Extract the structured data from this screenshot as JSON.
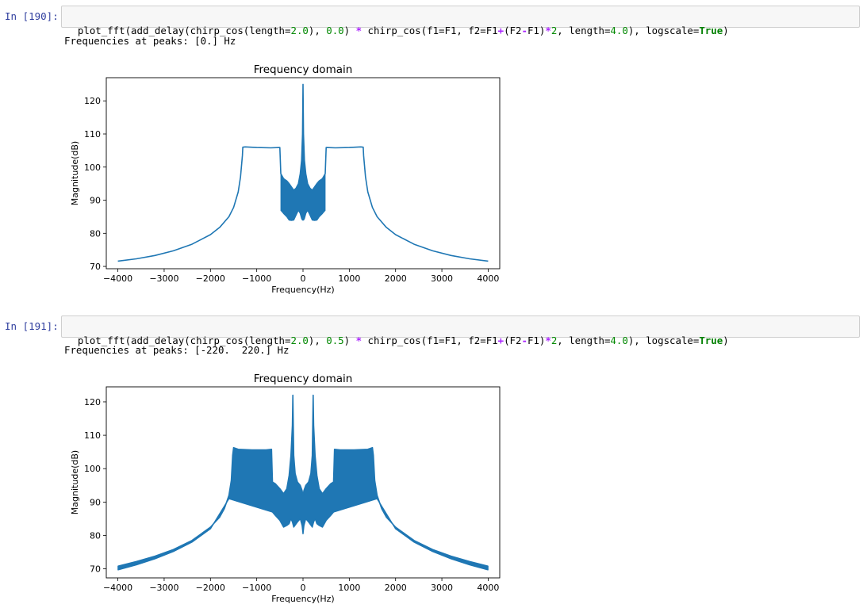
{
  "cells": [
    {
      "prompt": "In [190]:",
      "code_tokens": [
        {
          "t": "plot_fft(add_delay(chirp_cos(length=",
          "c": "p"
        },
        {
          "t": "2.0",
          "c": "num"
        },
        {
          "t": "), ",
          "c": "p"
        },
        {
          "t": "0.0",
          "c": "num"
        },
        {
          "t": ") ",
          "c": "p"
        },
        {
          "t": "*",
          "c": "op"
        },
        {
          "t": " chirp_cos(f1=F1, f2=F1",
          "c": "p"
        },
        {
          "t": "+",
          "c": "op"
        },
        {
          "t": "(F2",
          "c": "p"
        },
        {
          "t": "-",
          "c": "op"
        },
        {
          "t": "F1)",
          "c": "p"
        },
        {
          "t": "*",
          "c": "op"
        },
        {
          "t": "2",
          "c": "num"
        },
        {
          "t": ", length=",
          "c": "p"
        },
        {
          "t": "4.0",
          "c": "num"
        },
        {
          "t": "), logscale=",
          "c": "p"
        },
        {
          "t": "True",
          "c": "kw"
        },
        {
          "t": ")",
          "c": "p"
        }
      ],
      "output_text": "Frequencies at peaks: [0.] Hz"
    },
    {
      "prompt": "In [191]:",
      "code_tokens": [
        {
          "t": "plot_fft(add_delay(chirp_cos(length=",
          "c": "p"
        },
        {
          "t": "2.0",
          "c": "num"
        },
        {
          "t": "), ",
          "c": "p"
        },
        {
          "t": "0.5",
          "c": "num"
        },
        {
          "t": ") ",
          "c": "p"
        },
        {
          "t": "*",
          "c": "op"
        },
        {
          "t": " chirp_cos(f1=F1, f2=F1",
          "c": "p"
        },
        {
          "t": "+",
          "c": "op"
        },
        {
          "t": "(F2",
          "c": "p"
        },
        {
          "t": "-",
          "c": "op"
        },
        {
          "t": "F1)",
          "c": "p"
        },
        {
          "t": "*",
          "c": "op"
        },
        {
          "t": "2",
          "c": "num"
        },
        {
          "t": ", length=",
          "c": "p"
        },
        {
          "t": "4.0",
          "c": "num"
        },
        {
          "t": "), logscale=",
          "c": "p"
        },
        {
          "t": "True",
          "c": "kw"
        },
        {
          "t": ")",
          "c": "p"
        }
      ],
      "output_text": "Frequencies at peaks: [-220.  220.] Hz"
    }
  ],
  "chart_data": [
    {
      "type": "line",
      "title": "Frequency domain",
      "xlabel": "Frequency(Hz)",
      "ylabel": "Magnitude(dB)",
      "xlim": [
        -4250,
        4250
      ],
      "ylim": [
        69.3,
        127
      ],
      "xticks": [
        -4000,
        -3000,
        -2000,
        -1000,
        0,
        1000,
        2000,
        3000,
        4000
      ],
      "xtick_labels": [
        "−4000",
        "−3000",
        "−2000",
        "−1000",
        "0",
        "1000",
        "2000",
        "3000",
        "4000"
      ],
      "yticks": [
        70,
        80,
        90,
        100,
        110,
        120
      ],
      "ytick_labels": [
        "70",
        "80",
        "90",
        "100",
        "110",
        "120"
      ],
      "line_color": "#1f77b4",
      "series": [
        {
          "outline": [
            [
              -4000,
              71.6
            ],
            [
              -3600,
              72.3
            ],
            [
              -3200,
              73.3
            ],
            [
              -2800,
              74.7
            ],
            [
              -2400,
              76.7
            ],
            [
              -2000,
              79.6
            ],
            [
              -1800,
              81.8
            ],
            [
              -1600,
              85.0
            ],
            [
              -1500,
              87.8
            ],
            [
              -1400,
              92.5
            ],
            [
              -1350,
              97.0
            ],
            [
              -1310,
              103.5
            ],
            [
              -1300,
              106.0
            ],
            [
              -1250,
              106.1
            ],
            [
              -1000,
              105.9
            ],
            [
              -700,
              105.8
            ],
            [
              -500,
              105.9
            ],
            [
              -480,
              98.0
            ],
            [
              -420,
              96.5
            ],
            [
              -350,
              95.8
            ],
            [
              -300,
              95.0
            ],
            [
              -250,
              94.0
            ],
            [
              -200,
              93.0
            ],
            [
              -150,
              93.6
            ],
            [
              -100,
              95.0
            ],
            [
              -60,
              98.0
            ],
            [
              -30,
              102.0
            ],
            [
              -10,
              110.0
            ],
            [
              0,
              125.0
            ],
            [
              10,
              110.0
            ],
            [
              30,
              102.0
            ],
            [
              60,
              98.0
            ],
            [
              100,
              95.0
            ],
            [
              150,
              93.6
            ],
            [
              200,
              93.0
            ],
            [
              250,
              94.0
            ],
            [
              300,
              95.0
            ],
            [
              350,
              95.8
            ],
            [
              420,
              96.5
            ],
            [
              480,
              98.0
            ],
            [
              500,
              105.9
            ],
            [
              700,
              105.8
            ],
            [
              1000,
              105.9
            ],
            [
              1250,
              106.1
            ],
            [
              1300,
              106.0
            ],
            [
              1310,
              103.5
            ],
            [
              1350,
              97.0
            ],
            [
              1400,
              92.5
            ],
            [
              1500,
              87.8
            ],
            [
              1600,
              85.0
            ],
            [
              1800,
              81.8
            ],
            [
              2000,
              79.6
            ],
            [
              2400,
              76.7
            ],
            [
              2800,
              74.7
            ],
            [
              3200,
              73.3
            ],
            [
              3600,
              72.3
            ],
            [
              4000,
              71.6
            ]
          ],
          "band_floor": [
            [
              -480,
              87.0
            ],
            [
              -420,
              86.0
            ],
            [
              -350,
              85.0
            ],
            [
              -300,
              84.0
            ],
            [
              -250,
              83.9
            ],
            [
              -200,
              84.0
            ],
            [
              -150,
              85.5
            ],
            [
              -100,
              87.0
            ],
            [
              -60,
              86.0
            ],
            [
              -30,
              84.5
            ],
            [
              -10,
              84.0
            ],
            [
              0,
              84.0
            ],
            [
              10,
              84.0
            ],
            [
              30,
              84.5
            ],
            [
              60,
              86.0
            ],
            [
              100,
              87.0
            ],
            [
              150,
              85.5
            ],
            [
              200,
              84.0
            ],
            [
              250,
              83.9
            ],
            [
              300,
              84.0
            ],
            [
              350,
              85.0
            ],
            [
              420,
              86.0
            ],
            [
              480,
              87.0
            ]
          ]
        }
      ]
    },
    {
      "type": "line",
      "title": "Frequency domain",
      "xlabel": "Frequency(Hz)",
      "ylabel": "Magnitude(dB)",
      "xlim": [
        -4250,
        4250
      ],
      "ylim": [
        67.3,
        124.5
      ],
      "xticks": [
        -4000,
        -3000,
        -2000,
        -1000,
        0,
        1000,
        2000,
        3000,
        4000
      ],
      "xtick_labels": [
        "−4000",
        "−3000",
        "−2000",
        "−1000",
        "0",
        "1000",
        "2000",
        "3000",
        "4000"
      ],
      "yticks": [
        70,
        80,
        90,
        100,
        110,
        120
      ],
      "ytick_labels": [
        "70",
        "80",
        "90",
        "100",
        "110",
        "120"
      ],
      "line_color": "#1f77b4",
      "series": [
        {
          "outline": [
            [
              -4000,
              70.8
            ],
            [
              -3600,
              72.2
            ],
            [
              -3200,
              73.8
            ],
            [
              -2800,
              75.8
            ],
            [
              -2400,
              78.5
            ],
            [
              -2000,
              82.5
            ],
            [
              -1800,
              85.5
            ],
            [
              -1700,
              88.0
            ],
            [
              -1600,
              92.0
            ],
            [
              -1550,
              96.5
            ],
            [
              -1520,
              104.0
            ],
            [
              -1500,
              106.3
            ],
            [
              -1400,
              105.8
            ],
            [
              -1100,
              105.6
            ],
            [
              -800,
              105.6
            ],
            [
              -680,
              105.8
            ],
            [
              -660,
              96.0
            ],
            [
              -600,
              95.5
            ],
            [
              -500,
              94.0
            ],
            [
              -420,
              92.5
            ],
            [
              -350,
              94.0
            ],
            [
              -300,
              98.0
            ],
            [
              -260,
              104.0
            ],
            [
              -230,
              113.0
            ],
            [
              -220,
              122.0
            ],
            [
              -200,
              104.0
            ],
            [
              -170,
              98.5
            ],
            [
              -120,
              96.0
            ],
            [
              -60,
              95.0
            ],
            [
              -20,
              93.5
            ],
            [
              0,
              92.0
            ],
            [
              20,
              93.5
            ],
            [
              60,
              95.0
            ],
            [
              120,
              96.0
            ],
            [
              170,
              98.5
            ],
            [
              200,
              104.0
            ],
            [
              220,
              122.0
            ],
            [
              230,
              113.0
            ],
            [
              260,
              104.0
            ],
            [
              300,
              98.0
            ],
            [
              350,
              94.0
            ],
            [
              420,
              92.5
            ],
            [
              500,
              94.0
            ],
            [
              600,
              95.5
            ],
            [
              660,
              96.0
            ],
            [
              680,
              105.8
            ],
            [
              800,
              105.6
            ],
            [
              1100,
              105.6
            ],
            [
              1400,
              105.8
            ],
            [
              1500,
              106.3
            ],
            [
              1520,
              104.0
            ],
            [
              1550,
              96.5
            ],
            [
              1600,
              92.0
            ],
            [
              1700,
              88.0
            ],
            [
              1800,
              85.5
            ],
            [
              2000,
              82.5
            ],
            [
              2400,
              78.5
            ],
            [
              2800,
              75.8
            ],
            [
              3200,
              73.8
            ],
            [
              3600,
              72.2
            ],
            [
              4000,
              70.8
            ]
          ],
          "band_floor": [
            [
              -4000,
              69.7
            ],
            [
              -3600,
              71.2
            ],
            [
              -3200,
              73.0
            ],
            [
              -2800,
              75.2
            ],
            [
              -2400,
              78.0
            ],
            [
              -2000,
              82.0
            ],
            [
              -1600,
              91.0
            ],
            [
              -660,
              87.0
            ],
            [
              -600,
              86.0
            ],
            [
              -500,
              84.5
            ],
            [
              -420,
              82.5
            ],
            [
              -350,
              83.0
            ],
            [
              -300,
              83.5
            ],
            [
              -260,
              85.0
            ],
            [
              -230,
              84.0
            ],
            [
              -200,
              82.5
            ],
            [
              -120,
              84.0
            ],
            [
              -60,
              85.0
            ],
            [
              -20,
              83.0
            ],
            [
              0,
              80.5
            ],
            [
              20,
              83.0
            ],
            [
              60,
              85.0
            ],
            [
              120,
              84.0
            ],
            [
              200,
              82.5
            ],
            [
              230,
              84.0
            ],
            [
              260,
              85.0
            ],
            [
              300,
              83.5
            ],
            [
              350,
              83.0
            ],
            [
              420,
              82.5
            ],
            [
              500,
              84.5
            ],
            [
              600,
              86.0
            ],
            [
              660,
              87.0
            ],
            [
              1600,
              91.0
            ],
            [
              2000,
              82.0
            ],
            [
              2400,
              78.0
            ],
            [
              2800,
              75.2
            ],
            [
              3200,
              73.0
            ],
            [
              3600,
              71.2
            ],
            [
              4000,
              69.7
            ]
          ]
        }
      ]
    }
  ]
}
